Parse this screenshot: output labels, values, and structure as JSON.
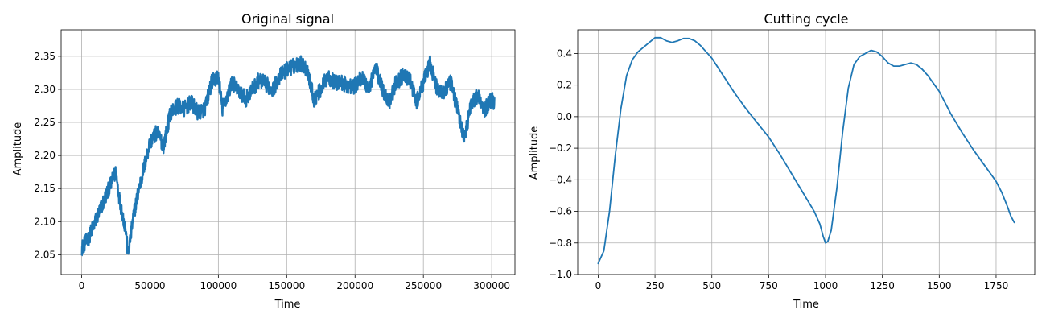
{
  "chart_data": [
    {
      "type": "line",
      "title": "Original signal",
      "xlabel": "Time",
      "ylabel": "Amplitude",
      "xlim": [
        -15000,
        317000
      ],
      "ylim": [
        2.02,
        2.39
      ],
      "xticks": [
        0,
        50000,
        100000,
        150000,
        200000,
        250000,
        300000
      ],
      "xtick_labels": [
        "0",
        "50000",
        "100000",
        "150000",
        "200000",
        "250000",
        "300000"
      ],
      "yticks": [
        2.05,
        2.1,
        2.15,
        2.2,
        2.25,
        2.3,
        2.35
      ],
      "ytick_labels": [
        "2.05",
        "2.10",
        "2.15",
        "2.20",
        "2.25",
        "2.30",
        "2.35"
      ],
      "grid": true,
      "color": "#1f77b4",
      "series": [
        {
          "x": [
            0,
            5000,
            10000,
            15000,
            20000,
            25000,
            28000,
            32000,
            34000,
            38000,
            42000,
            46000,
            50000,
            55000,
            60000,
            65000,
            70000,
            75000,
            80000,
            85000,
            90000,
            95000,
            100000,
            103000,
            110000,
            120000,
            125000,
            130000,
            140000,
            145000,
            150000,
            155000,
            160000,
            165000,
            170000,
            175000,
            180000,
            185000,
            190000,
            195000,
            200000,
            205000,
            210000,
            215000,
            220000,
            225000,
            230000,
            235000,
            240000,
            245000,
            250000,
            255000,
            260000,
            265000,
            270000,
            275000,
            278000,
            280000,
            285000,
            290000,
            295000,
            300000,
            302000
          ],
          "y": [
            2.06,
            2.075,
            2.1,
            2.125,
            2.15,
            2.175,
            2.13,
            2.09,
            2.05,
            2.11,
            2.15,
            2.185,
            2.22,
            2.235,
            2.215,
            2.265,
            2.275,
            2.27,
            2.28,
            2.265,
            2.27,
            2.31,
            2.32,
            2.27,
            2.31,
            2.285,
            2.3,
            2.315,
            2.3,
            2.32,
            2.33,
            2.335,
            2.34,
            2.33,
            2.285,
            2.3,
            2.32,
            2.31,
            2.31,
            2.305,
            2.305,
            2.32,
            2.3,
            2.335,
            2.3,
            2.28,
            2.31,
            2.32,
            2.315,
            2.28,
            2.31,
            2.34,
            2.3,
            2.295,
            2.31,
            2.27,
            2.24,
            2.225,
            2.28,
            2.29,
            2.27,
            2.285,
            2.28
          ],
          "noise_amplitude": 0.012
        }
      ]
    },
    {
      "type": "line",
      "title": "Cutting cycle",
      "xlabel": "Time",
      "ylabel": "Amplitude",
      "xlim": [
        -90,
        1920
      ],
      "ylim": [
        -1.0,
        0.55
      ],
      "xticks": [
        0,
        250,
        500,
        750,
        1000,
        1250,
        1500,
        1750
      ],
      "xtick_labels": [
        "0",
        "250",
        "500",
        "750",
        "1000",
        "1250",
        "1500",
        "1750"
      ],
      "yticks": [
        -1.0,
        -0.8,
        -0.6,
        -0.4,
        -0.2,
        0.0,
        0.2,
        0.4
      ],
      "ytick_labels": [
        "−1.0",
        "−0.8",
        "−0.6",
        "−0.4",
        "−0.2",
        "0.0",
        "0.2",
        "0.4"
      ],
      "grid": true,
      "color": "#1f77b4",
      "series": [
        {
          "x": [
            0,
            25,
            50,
            75,
            100,
            125,
            150,
            175,
            200,
            250,
            275,
            300,
            325,
            350,
            375,
            400,
            425,
            450,
            475,
            500,
            550,
            600,
            650,
            700,
            750,
            800,
            850,
            900,
            925,
            950,
            975,
            990,
            1000,
            1010,
            1025,
            1050,
            1075,
            1100,
            1125,
            1150,
            1175,
            1200,
            1225,
            1250,
            1275,
            1300,
            1325,
            1350,
            1375,
            1400,
            1425,
            1450,
            1475,
            1500,
            1550,
            1600,
            1650,
            1700,
            1750,
            1775,
            1800,
            1815,
            1830
          ],
          "y": [
            -0.93,
            -0.85,
            -0.6,
            -0.25,
            0.05,
            0.26,
            0.36,
            0.41,
            0.44,
            0.5,
            0.5,
            0.48,
            0.47,
            0.48,
            0.495,
            0.495,
            0.48,
            0.45,
            0.41,
            0.37,
            0.26,
            0.15,
            0.05,
            -0.04,
            -0.13,
            -0.24,
            -0.36,
            -0.48,
            -0.54,
            -0.6,
            -0.68,
            -0.76,
            -0.8,
            -0.79,
            -0.72,
            -0.45,
            -0.1,
            0.18,
            0.33,
            0.38,
            0.4,
            0.42,
            0.41,
            0.38,
            0.34,
            0.32,
            0.32,
            0.33,
            0.34,
            0.33,
            0.3,
            0.26,
            0.21,
            0.16,
            0.02,
            -0.1,
            -0.21,
            -0.31,
            -0.41,
            -0.48,
            -0.57,
            -0.63,
            -0.67
          ]
        }
      ]
    }
  ]
}
